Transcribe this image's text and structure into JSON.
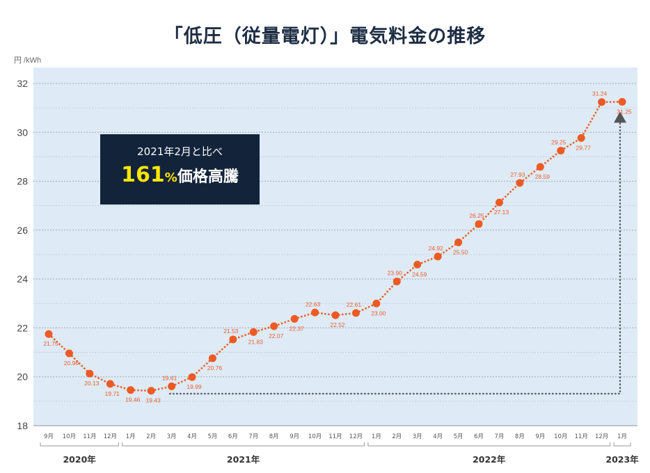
{
  "title": "「低圧（従量電灯）」電気料金の推移",
  "unit_label": "円 /kWh",
  "callout": {
    "line1": "2021年2月と比べ",
    "pct_value": "161",
    "pct_sign": "%",
    "line2_rest": "価格高騰"
  },
  "colors": {
    "plot_bg": "#deebf7",
    "line": "#ee5a24",
    "label": "#ee5a24",
    "callout_bg": "#12233a",
    "highlight": "#ffe600",
    "arrow": "#555555"
  },
  "chart_data": {
    "type": "line",
    "ylim": [
      18,
      32
    ],
    "y_ticks": [
      18,
      20,
      22,
      24,
      26,
      28,
      30,
      32
    ],
    "grid": true,
    "categories": [
      "9月",
      "10月",
      "11月",
      "12月",
      "1月",
      "2月",
      "3月",
      "4月",
      "5月",
      "6月",
      "7月",
      "8月",
      "9月",
      "10月",
      "11月",
      "12月",
      "1月",
      "2月",
      "3月",
      "4月",
      "5月",
      "6月",
      "7月",
      "8月",
      "9月",
      "10月",
      "11月",
      "12月",
      "1月"
    ],
    "values": [
      21.75,
      20.96,
      20.13,
      19.71,
      19.46,
      19.43,
      19.61,
      19.99,
      20.76,
      21.53,
      21.83,
      22.07,
      22.37,
      22.63,
      22.52,
      22.61,
      23.0,
      23.9,
      24.59,
      24.92,
      25.5,
      26.25,
      27.13,
      27.93,
      28.59,
      29.25,
      29.77,
      31.24,
      31.25
    ],
    "data_labels": [
      "21.75",
      "20.96",
      "20.13",
      "19.71",
      "19.46",
      "19.43",
      "19.61",
      "19.99",
      "20.76",
      "21.53",
      "21.83",
      "22.07",
      "22.37",
      "22.63",
      "22.52",
      "22.61",
      "23.00",
      "23.90",
      "24.59",
      "24.92",
      "25.50",
      "26.25",
      "27.13",
      "27.93",
      "28.59",
      "29.25",
      "29.77",
      "31.24",
      "31.25"
    ],
    "year_groups": [
      {
        "label": "2020年",
        "start": 0,
        "end": 3
      },
      {
        "label": "2021年",
        "start": 4,
        "end": 15
      },
      {
        "label": "2022年",
        "start": 16,
        "end": 27
      },
      {
        "label": "2023年",
        "start": 28,
        "end": 28
      }
    ],
    "annotation": {
      "type": "arrow",
      "from_index": 5,
      "to_index": 28
    }
  }
}
